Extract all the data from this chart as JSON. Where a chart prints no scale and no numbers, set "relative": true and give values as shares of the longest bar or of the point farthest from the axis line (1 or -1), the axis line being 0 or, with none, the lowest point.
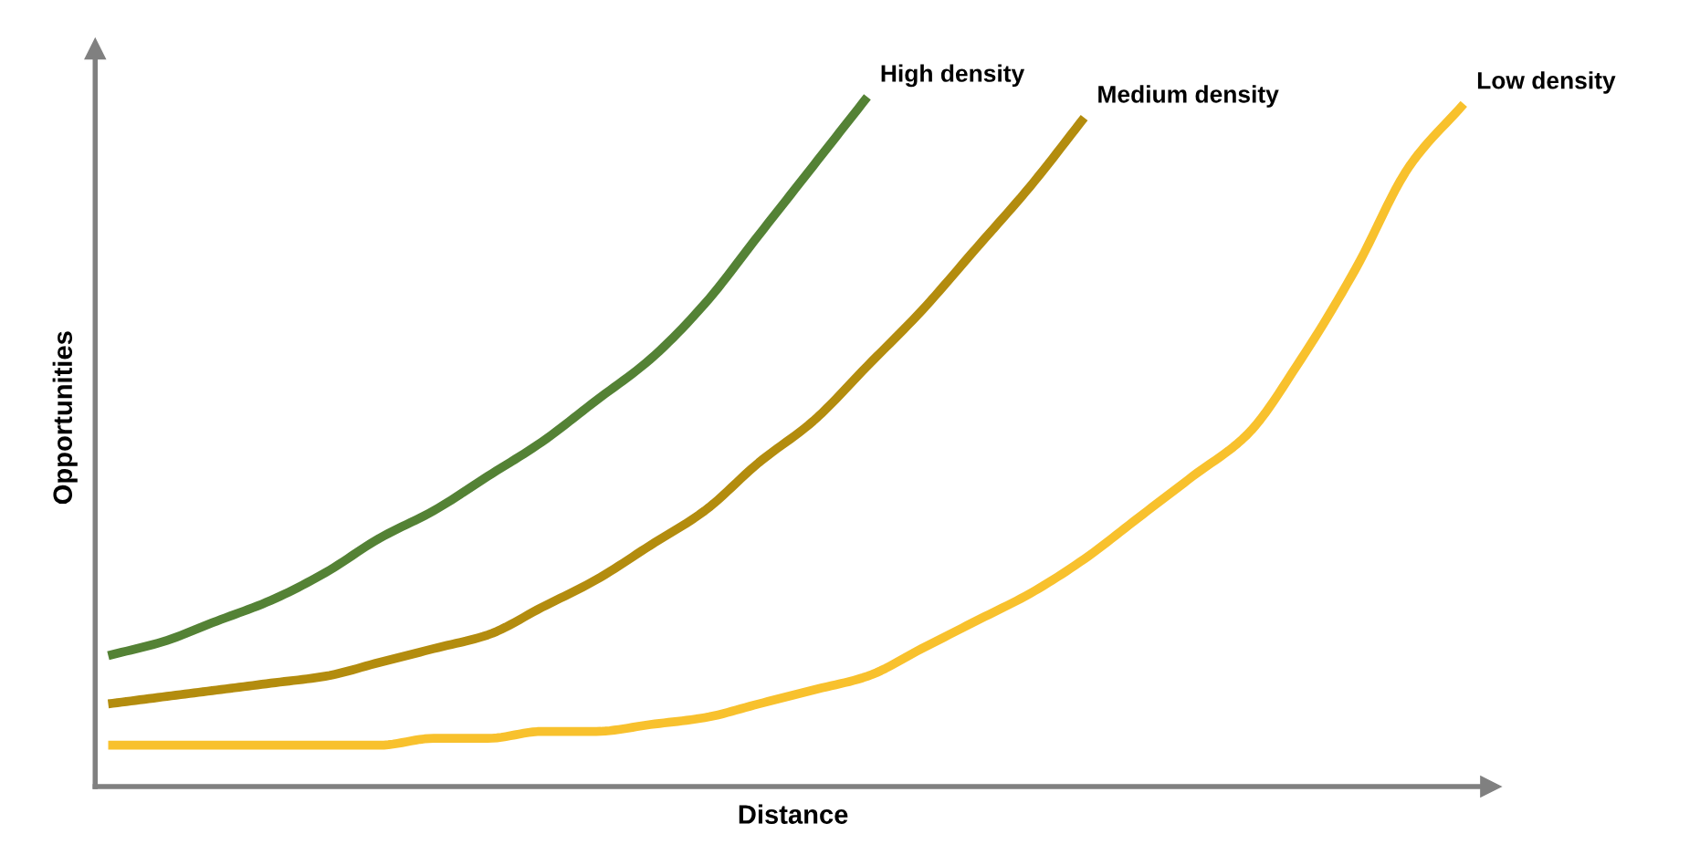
{
  "chart_data": {
    "type": "line",
    "relative": true,
    "xlabel": "Distance",
    "ylabel": "Opportunities",
    "legend": false,
    "marker": "none",
    "line_style": "solid",
    "categories": [
      null,
      null,
      null,
      null,
      null,
      null,
      null,
      null,
      null,
      null,
      null,
      null,
      null,
      null,
      null,
      null,
      null,
      null,
      null,
      null,
      null,
      null,
      null,
      null,
      null,
      null
    ],
    "series": [
      {
        "name": "High density",
        "color": "#548235",
        "values": [
          0.19,
          0.21,
          0.24,
          0.27,
          0.31,
          0.36,
          0.4,
          0.45,
          0.5,
          0.56,
          0.62,
          0.7,
          0.8,
          0.9,
          1.0,
          null,
          null,
          null,
          null,
          null,
          null,
          null,
          null,
          null,
          null,
          null
        ]
      },
      {
        "name": "Medium density",
        "color": "#b38c0e",
        "values": [
          0.12,
          0.13,
          0.14,
          0.15,
          0.16,
          0.18,
          0.2,
          0.22,
          0.26,
          0.3,
          0.35,
          0.4,
          0.47,
          0.53,
          0.61,
          0.69,
          0.78,
          0.87,
          0.97,
          null,
          null,
          null,
          null,
          null,
          null,
          null
        ]
      },
      {
        "name": "Low density",
        "color": "#f8c12d",
        "values": [
          0.06,
          0.06,
          0.06,
          0.06,
          0.06,
          0.06,
          0.07,
          0.07,
          0.08,
          0.08,
          0.09,
          0.1,
          0.12,
          0.14,
          0.16,
          0.2,
          0.24,
          0.28,
          0.33,
          0.39,
          0.45,
          0.51,
          0.62,
          0.75,
          0.9,
          0.99
        ]
      }
    ]
  }
}
